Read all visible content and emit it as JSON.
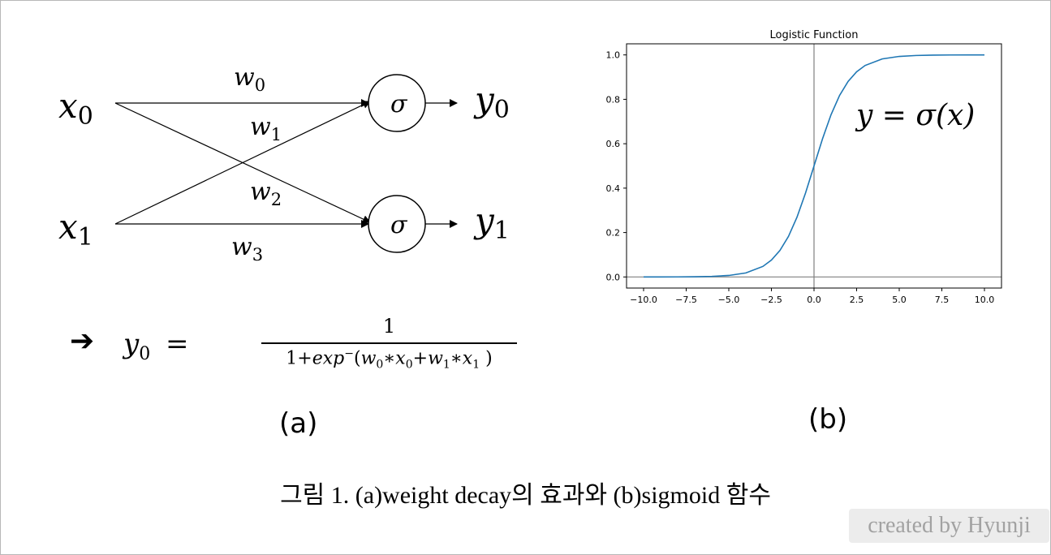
{
  "network": {
    "inputs": [
      {
        "var": "x",
        "sub": "0"
      },
      {
        "var": "x",
        "sub": "1"
      }
    ],
    "outputs": [
      {
        "var": "y",
        "sub": "0"
      },
      {
        "var": "y",
        "sub": "1"
      }
    ],
    "weights": [
      {
        "var": "w",
        "sub": "0"
      },
      {
        "var": "w",
        "sub": "1"
      },
      {
        "var": "w",
        "sub": "2"
      },
      {
        "var": "w",
        "sub": "3"
      }
    ],
    "node_symbol": "σ"
  },
  "formula": {
    "arrow": "➔",
    "lhs_var": "y",
    "lhs_sub": "0",
    "equals": "=",
    "numerator": "1",
    "denominator": {
      "one_plus": "1+",
      "exp": "exp",
      "sup": "−",
      "open": "(",
      "w0": "w",
      "w0_sub": "0",
      "times1": "∗",
      "x0": "x",
      "x0_sub": "0",
      "plus": "+",
      "w1": "w",
      "w1_sub": "1",
      "times2": "∗",
      "x1": "x",
      "x1_sub": "1",
      "close": " )"
    }
  },
  "labels": {
    "panel_a": "(a)",
    "panel_b": "(b)"
  },
  "plot_annotation": "y = σ(x)",
  "caption": "그림 1. (a)weight decay의 효과와 (b)sigmoid 함수",
  "credit": "created by Hyunji",
  "chart_data": {
    "type": "line",
    "title": "Logistic Function",
    "xlabel": "",
    "ylabel": "",
    "xlim": [
      -11.0,
      11.0
    ],
    "ylim": [
      -0.05,
      1.05
    ],
    "xticks": [
      -10.0,
      -7.5,
      -5.0,
      -2.5,
      0.0,
      2.5,
      5.0,
      7.5,
      10.0
    ],
    "xtick_labels": [
      "−10.0",
      "−7.5",
      "−5.0",
      "−2.5",
      "0.0",
      "2.5",
      "5.0",
      "7.5",
      "10.0"
    ],
    "yticks": [
      0.0,
      0.2,
      0.4,
      0.6,
      0.8,
      1.0
    ],
    "ytick_labels": [
      "0.0",
      "0.2",
      "0.4",
      "0.6",
      "0.8",
      "1.0"
    ],
    "grid": false,
    "reference_lines": {
      "x": 0,
      "y": 0
    },
    "series": [
      {
        "color": "#1f77b4",
        "x": [
          -10,
          -9,
          -8,
          -7,
          -6,
          -5,
          -4,
          -3,
          -2.5,
          -2,
          -1.5,
          -1,
          -0.5,
          0,
          0.5,
          1,
          1.5,
          2,
          2.5,
          3,
          4,
          5,
          6,
          7,
          8,
          9,
          10
        ],
        "y": [
          0.0,
          0.0001,
          0.0003,
          0.0009,
          0.0025,
          0.0067,
          0.018,
          0.0474,
          0.0759,
          0.1192,
          0.1824,
          0.2689,
          0.3775,
          0.5,
          0.6225,
          0.7311,
          0.8176,
          0.8808,
          0.9241,
          0.9526,
          0.982,
          0.9933,
          0.9975,
          0.9991,
          0.9997,
          0.9999,
          1.0
        ]
      }
    ]
  }
}
